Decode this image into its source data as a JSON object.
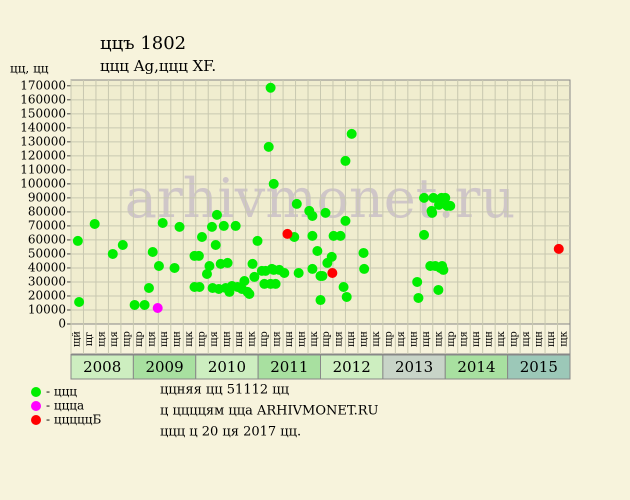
{
  "chart_data": {
    "type": "scatter",
    "title": "ццъ 1802",
    "subtitle": "ццц Ag,ццц XF.",
    "y_label": "цц, цц",
    "watermark": "arhivmonet.ru",
    "xlim": [
      2008,
      2016
    ],
    "ylim": [
      0,
      172000
    ],
    "yticks": [
      0,
      10000,
      20000,
      30000,
      40000,
      50000,
      60000,
      70000,
      80000,
      90000,
      100000,
      110000,
      120000,
      130000,
      140000,
      150000,
      160000,
      170000
    ],
    "xticks": [
      {
        "value": 2008.1,
        "label": "щй"
      },
      {
        "value": 2008.3,
        "label": "щг"
      },
      {
        "value": 2008.5,
        "label": "щя"
      },
      {
        "value": 2008.7,
        "label": "щя"
      },
      {
        "value": 2008.9,
        "label": "щр"
      },
      {
        "value": 2009.1,
        "label": "щр"
      },
      {
        "value": 2009.3,
        "label": "щя"
      },
      {
        "value": 2009.5,
        "label": "щн"
      },
      {
        "value": 2009.7,
        "label": "щн"
      },
      {
        "value": 2009.9,
        "label": "щк"
      },
      {
        "value": 2010.1,
        "label": "щр"
      },
      {
        "value": 2010.3,
        "label": "щя"
      },
      {
        "value": 2010.5,
        "label": "щн"
      },
      {
        "value": 2010.7,
        "label": "щн"
      },
      {
        "value": 2010.9,
        "label": "щк"
      },
      {
        "value": 2011.1,
        "label": "щр"
      },
      {
        "value": 2011.3,
        "label": "щя"
      },
      {
        "value": 2011.5,
        "label": "щн"
      },
      {
        "value": 2011.7,
        "label": "щн"
      },
      {
        "value": 2011.9,
        "label": "щк"
      },
      {
        "value": 2012.1,
        "label": "щр"
      },
      {
        "value": 2012.3,
        "label": "щя"
      },
      {
        "value": 2012.5,
        "label": "щн"
      },
      {
        "value": 2012.7,
        "label": "щн"
      },
      {
        "value": 2012.9,
        "label": "щк"
      },
      {
        "value": 2013.1,
        "label": "щр"
      },
      {
        "value": 2013.3,
        "label": "щя"
      },
      {
        "value": 2013.5,
        "label": "щн"
      },
      {
        "value": 2013.7,
        "label": "щн"
      },
      {
        "value": 2013.9,
        "label": "щк"
      },
      {
        "value": 2014.1,
        "label": "щр"
      },
      {
        "value": 2014.3,
        "label": "щя"
      },
      {
        "value": 2014.5,
        "label": "щн"
      },
      {
        "value": 2014.7,
        "label": "щн"
      },
      {
        "value": 2014.9,
        "label": "щк"
      },
      {
        "value": 2015.1,
        "label": "щр"
      },
      {
        "value": 2015.3,
        "label": "щя"
      },
      {
        "value": 2015.5,
        "label": "щн"
      },
      {
        "value": 2015.7,
        "label": "щн"
      },
      {
        "value": 2015.9,
        "label": "щк"
      }
    ],
    "years": [
      {
        "label": "2008",
        "color": "#cdeec0"
      },
      {
        "label": "2009",
        "color": "#a8e0a0"
      },
      {
        "label": "2010",
        "color": "#cdeec0"
      },
      {
        "label": "2011",
        "color": "#a8e0a0"
      },
      {
        "label": "2012",
        "color": "#cdeec0"
      },
      {
        "label": "2013",
        "color": "#c8d4c8"
      },
      {
        "label": "2014",
        "color": "#a8e0a0"
      },
      {
        "label": "2015",
        "color": "#9cc8b8"
      }
    ],
    "grid": true,
    "series": [
      {
        "name": "- ццц",
        "color": "#00ee00",
        "x": [
          2008.11,
          2008.13,
          2008.38,
          2008.67,
          2008.83,
          2009.02,
          2009.18,
          2009.25,
          2009.31,
          2009.41,
          2009.47,
          2009.66,
          2009.74,
          2009.98,
          2009.98,
          2010.05,
          2010.06,
          2010.1,
          2010.18,
          2010.22,
          2010.26,
          2010.27,
          2010.32,
          2010.34,
          2010.37,
          2010.4,
          2010.45,
          2010.48,
          2010.51,
          2010.54,
          2010.58,
          2010.64,
          2010.67,
          2010.74,
          2010.78,
          2010.83,
          2010.86,
          2010.91,
          2010.94,
          2010.99,
          2011.06,
          2011.1,
          2011.12,
          2011.17,
          2011.2,
          2011.2,
          2011.22,
          2011.25,
          2011.25,
          2011.28,
          2011.34,
          2011.42,
          2011.58,
          2011.62,
          2011.65,
          2011.82,
          2011.87,
          2011.87,
          2011.87,
          2011.95,
          2012.0,
          2012.0,
          2012.03,
          2012.08,
          2012.11,
          2012.18,
          2012.21,
          2012.32,
          2012.37,
          2012.4,
          2012.4,
          2012.42,
          2012.5,
          2012.69,
          2012.7,
          2013.55,
          2013.57,
          2013.66,
          2013.66,
          2013.76,
          2013.78,
          2013.79,
          2013.81,
          2013.84,
          2013.89,
          2013.9,
          2013.92,
          2013.94,
          2013.95,
          2013.97,
          2014.0,
          2014.03,
          2014.08
        ],
        "values": [
          59300,
          15700,
          71400,
          50000,
          56400,
          13600,
          13600,
          25700,
          51400,
          41400,
          72100,
          40000,
          69300,
          26400,
          48600,
          48600,
          26400,
          62100,
          35700,
          41400,
          69300,
          25700,
          56400,
          77900,
          25000,
          42900,
          70000,
          25700,
          43600,
          22900,
          27100,
          70000,
          26400,
          25000,
          30700,
          22900,
          21400,
          42900,
          33600,
          59300,
          37900,
          28600,
          37900,
          126400,
          168600,
          28600,
          39300,
          100000,
          38600,
          28600,
          38600,
          36400,
          62100,
          85700,
          36400,
          80700,
          77100,
          39300,
          62900,
          52100,
          17100,
          34300,
          34300,
          79300,
          43600,
          47900,
          62900,
          62900,
          26400,
          116400,
          73600,
          19300,
          135700,
          50700,
          39300,
          30000,
          18600,
          90000,
          63600,
          41400,
          80700,
          79300,
          90000,
          41400,
          24300,
          85000,
          40000,
          90000,
          41400,
          38600,
          90000,
          84300,
          84300
        ]
      },
      {
        "name": "- ццца",
        "color": "#ff00ff",
        "x": [
          2009.39
        ],
        "values": [
          11400
        ]
      },
      {
        "name": "- цццццБ",
        "color": "#ff0000",
        "x": [
          2011.47,
          2012.19,
          2015.82
        ],
        "values": [
          64300,
          36400,
          53600
        ]
      }
    ],
    "notes": [
      "ццняя цц 51112 цц",
      "ц ццццям ццa ARHIVMONET.RU",
      "ццц ц 20 ця 2017 цц."
    ]
  }
}
